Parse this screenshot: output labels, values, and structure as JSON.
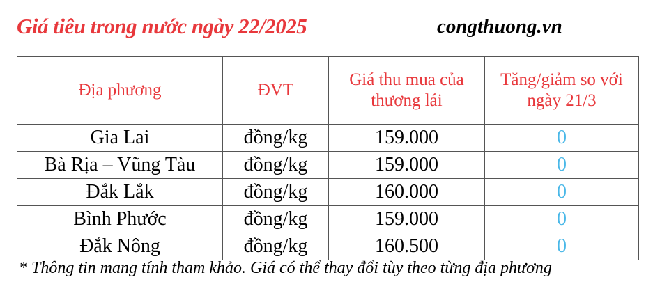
{
  "title": "Giá tiêu trong nước ngày 22/2025",
  "site": "congthuong.vn",
  "headers": [
    "Địa phương",
    "ĐVT",
    "Giá thu mua của thương lái",
    "Tăng/giảm so với ngày 21/3"
  ],
  "rows": [
    {
      "region": "Gia Lai",
      "unit": "đồng/kg",
      "price": "159.000",
      "change": "0"
    },
    {
      "region": "Bà Rịa – Vũng Tàu",
      "unit": "đồng/kg",
      "price": "159.000",
      "change": "0"
    },
    {
      "region": "Đắk Lắk",
      "unit": "đồng/kg",
      "price": "160.000",
      "change": "0"
    },
    {
      "region": "Bình Phước",
      "unit": "đồng/kg",
      "price": "159.000",
      "change": "0"
    },
    {
      "region": "Đắk Nông",
      "unit": "đồng/kg",
      "price": "160.500",
      "change": "0"
    }
  ],
  "note": "* Thông tin mang tính tham khảo. Giá có thể thay đổi tùy theo từng địa phương",
  "colors": {
    "header": "#e8383c",
    "change": "#4ab8e8"
  }
}
